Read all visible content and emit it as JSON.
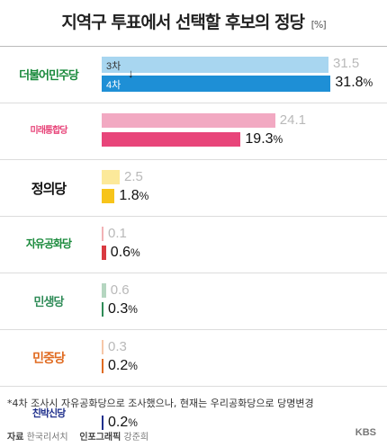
{
  "header": {
    "title": "지역구 투표에서 선택할 후보의 정당",
    "unit": "[%]"
  },
  "legend": {
    "round3": "3차",
    "round4": "4차"
  },
  "chart_data": {
    "type": "bar",
    "title": "지역구 투표에서 선택할 후보의 정당",
    "unit": "%",
    "categories": [
      "더불어민주당",
      "미래통합당",
      "정의당",
      "자유공화당",
      "민생당",
      "민중당",
      "친박신당"
    ],
    "series": [
      {
        "name": "3차",
        "values": [
          31.5,
          24.1,
          2.5,
          0.1,
          0.6,
          0.3,
          null
        ],
        "labels": [
          "31.5",
          "24.1",
          "2.5",
          "0.1",
          "0.6",
          "0.3",
          "-"
        ]
      },
      {
        "name": "4차",
        "values": [
          31.8,
          19.3,
          1.8,
          0.6,
          0.3,
          0.2,
          0.2
        ],
        "labels": [
          "31.8",
          "19.3",
          "1.8",
          "0.6",
          "0.3",
          "0.2",
          "0.2"
        ]
      }
    ],
    "percent_sign": "%",
    "colors": {
      "round3": [
        "#a8d6f0",
        "#f2a9c2",
        "#fce99a",
        "#f2b2b5",
        "#b5d6c0",
        "#f6c7a8",
        "#bdbdbd"
      ],
      "round4": [
        "#1e8fd6",
        "#e8457a",
        "#f7c41a",
        "#d93a41",
        "#2e8b57",
        "#e06b21",
        "#1f2f8c"
      ]
    }
  },
  "parties": [
    {
      "logo_text": "더불어민주당",
      "color": "#1a8a3c"
    },
    {
      "logo_text": "미래통합당",
      "color": "#e8457a"
    },
    {
      "logo_text": "정의당",
      "color": "#111111"
    },
    {
      "logo_text": "자유공화당",
      "color": "#1a8a3c"
    },
    {
      "logo_text": "민생당",
      "color": "#2e8b57"
    },
    {
      "logo_text": "민중당",
      "color": "#e06b21"
    },
    {
      "logo_text": "친박신당",
      "color": "#1f2f8c"
    }
  ],
  "footnote": "*4차 조사시 자유공화당으로 조사했으나, 현재는 우리공화당으로 당명변경",
  "credit": {
    "source_label": "자료",
    "source": "한국리서치",
    "graphic_label": "인포그래픽",
    "graphic": "강준희"
  },
  "brand": "KBS"
}
